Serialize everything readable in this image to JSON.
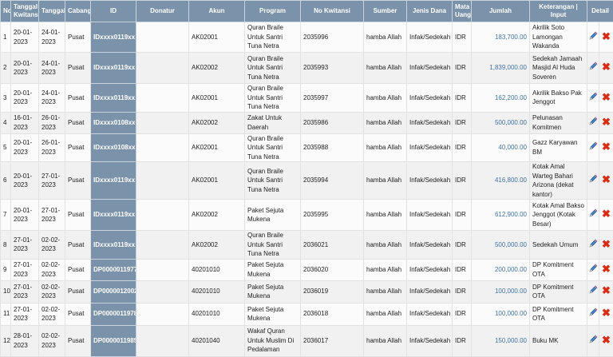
{
  "table": {
    "headers": [
      "No",
      "Tanggal Kwitansi",
      "Tanggal",
      "Cabang",
      "ID",
      "Donatur",
      "Akun",
      "Program",
      "No Kwitansi",
      "Sumber",
      "Jenis Dana",
      "Mata Uang",
      "Jumlah",
      "Keterangan | Input",
      "Detail"
    ],
    "rows": [
      {
        "no": "1",
        "tgl_kwitansi": "20-01-2023",
        "tanggal": "24-01-2023",
        "cabang": "Pusat",
        "id": "IDxxxx0119xx",
        "donatur": "",
        "akun": "AK02001",
        "program": "Quran Braile Untuk Santri Tuna Netra",
        "no_kwitansi": "2035996",
        "sumber": "hamba Allah",
        "jenis_dana": "Infak/Sedekah",
        "mata_uang": "IDR",
        "jumlah": "183,700.00",
        "keterangan": "Akrilik Soto Lamongan Wakanda"
      },
      {
        "no": "2",
        "tgl_kwitansi": "20-01-2023",
        "tanggal": "24-01-2023",
        "cabang": "Pusat",
        "id": "IDxxxx0119xx",
        "donatur": "",
        "akun": "AK02002",
        "program": "Quran Braile Untuk Santri Tuna Netra",
        "no_kwitansi": "2035993",
        "sumber": "hamba Allah",
        "jenis_dana": "Infak/Sedekah",
        "mata_uang": "IDR",
        "jumlah": "1,839,000.00",
        "keterangan": "Sedekah Jamaah Masjid Al Huda Soveren"
      },
      {
        "no": "3",
        "tgl_kwitansi": "20-01-2023",
        "tanggal": "24-01-2023",
        "cabang": "Pusat",
        "id": "IDxxxx0119xx",
        "donatur": "",
        "akun": "AK02001",
        "program": "Quran Braile Untuk Santri Tuna Netra",
        "no_kwitansi": "2035997",
        "sumber": "hamba Allah",
        "jenis_dana": "Infak/Sedekah",
        "mata_uang": "IDR",
        "jumlah": "162,200.00",
        "keterangan": "Akrilik Bakso Pak Jenggot"
      },
      {
        "no": "4",
        "tgl_kwitansi": "16-01-2023",
        "tanggal": "26-01-2023",
        "cabang": "Pusat",
        "id": "IDxxxx0108xx",
        "donatur": "",
        "akun": "AK02002",
        "program": "Zakat Untuk Daerah",
        "no_kwitansi": "2035986",
        "sumber": "hamba Allah",
        "jenis_dana": "Infak/Sedekah",
        "mata_uang": "IDR",
        "jumlah": "500,000.00",
        "keterangan": "Pelunasan Komitmen"
      },
      {
        "no": "5",
        "tgl_kwitansi": "20-01-2023",
        "tanggal": "26-01-2023",
        "cabang": "Pusat",
        "id": "IDxxxx0108xx",
        "donatur": "",
        "akun": "AK02001",
        "program": "Quran Braile Untuk Santri Tuna Netra",
        "no_kwitansi": "2035988",
        "sumber": "hamba Allah",
        "jenis_dana": "Infak/Sedekah",
        "mata_uang": "IDR",
        "jumlah": "40,000.00",
        "keterangan": "Gazz Karyawan BM"
      },
      {
        "no": "6",
        "tgl_kwitansi": "20-01-2023",
        "tanggal": "27-01-2023",
        "cabang": "Pusat",
        "id": "IDxxxx0119xx",
        "donatur": "",
        "akun": "AK02001",
        "program": "Quran Braile Untuk Santri Tuna Netra",
        "no_kwitansi": "2035994",
        "sumber": "hamba Allah",
        "jenis_dana": "Infak/Sedekah",
        "mata_uang": "IDR",
        "jumlah": "416,800.00",
        "keterangan": "Kotak Amal Warteg Bahari Arizona (dekat kantor)"
      },
      {
        "no": "7",
        "tgl_kwitansi": "20-01-2023",
        "tanggal": "27-01-2023",
        "cabang": "Pusat",
        "id": "IDxxxx0119xx",
        "donatur": "",
        "akun": "AK02002",
        "program": "Paket Sejuta Mukena",
        "no_kwitansi": "2035995",
        "sumber": "hamba Allah",
        "jenis_dana": "Infak/Sedekah",
        "mata_uang": "IDR",
        "jumlah": "612,900.00",
        "keterangan": "Kotak Amal Bakso Jenggot (Kotak Besar)"
      },
      {
        "no": "8",
        "tgl_kwitansi": "27-01-2023",
        "tanggal": "02-02-2023",
        "cabang": "Pusat",
        "id": "IDxxxx0119xx",
        "donatur": "",
        "akun": "AK02002",
        "program": "Quran Braile Untuk Santri Tuna Netra",
        "no_kwitansi": "2036021",
        "sumber": "hamba Allah",
        "jenis_dana": "Infak/Sedekah",
        "mata_uang": "IDR",
        "jumlah": "500,000.00",
        "keterangan": "Sedekah Umum"
      },
      {
        "no": "9",
        "tgl_kwitansi": "27-01-2023",
        "tanggal": "02-02-2023",
        "cabang": "Pusat",
        "id": "DP0000011977",
        "donatur": "",
        "akun": "40201010",
        "program": "Paket Sejuta Mukena",
        "no_kwitansi": "2036020",
        "sumber": "hamba Allah",
        "jenis_dana": "Infak/Sedekah",
        "mata_uang": "IDR",
        "jumlah": "200,000.00",
        "keterangan": "DP Komitment OTA"
      },
      {
        "no": "10",
        "tgl_kwitansi": "27-01-2023",
        "tanggal": "02-02-2023",
        "cabang": "Pusat",
        "id": "DP0000012002",
        "donatur": "",
        "akun": "40201010",
        "program": "Paket Sejuta Mukena",
        "no_kwitansi": "2036019",
        "sumber": "hamba Allah",
        "jenis_dana": "Infak/Sedekah",
        "mata_uang": "IDR",
        "jumlah": "100,000.00",
        "keterangan": "DP Komitment OTA"
      },
      {
        "no": "11",
        "tgl_kwitansi": "27-01-2023",
        "tanggal": "02-02-2023",
        "cabang": "Pusat",
        "id": "DP0000011978",
        "donatur": "",
        "akun": "40201010",
        "program": "Paket Sejuta Mukena",
        "no_kwitansi": "2036018",
        "sumber": "hamba Allah",
        "jenis_dana": "Infak/Sedekah",
        "mata_uang": "IDR",
        "jumlah": "100,000.00",
        "keterangan": "DP Komitment OTA"
      },
      {
        "no": "12",
        "tgl_kwitansi": "28-01-2023",
        "tanggal": "02-02-2023",
        "cabang": "Pusat",
        "id": "DP0000011985",
        "donatur": "",
        "akun": "40201040",
        "program": "Wakaf Quran Untuk Muslim Di Pedalaman",
        "no_kwitansi": "2036017",
        "sumber": "hamba Allah",
        "jenis_dana": "Infak/Sedekah",
        "mata_uang": "IDR",
        "jumlah": "150,000.00",
        "keterangan": "Buku MK"
      }
    ],
    "actions": {
      "edit_icon": "pencil-icon",
      "delete_icon": "x-icon"
    }
  },
  "colors": {
    "header_bg": "#7b93aa",
    "amount_text": "#3f74a6",
    "delete": "#e02a10"
  }
}
